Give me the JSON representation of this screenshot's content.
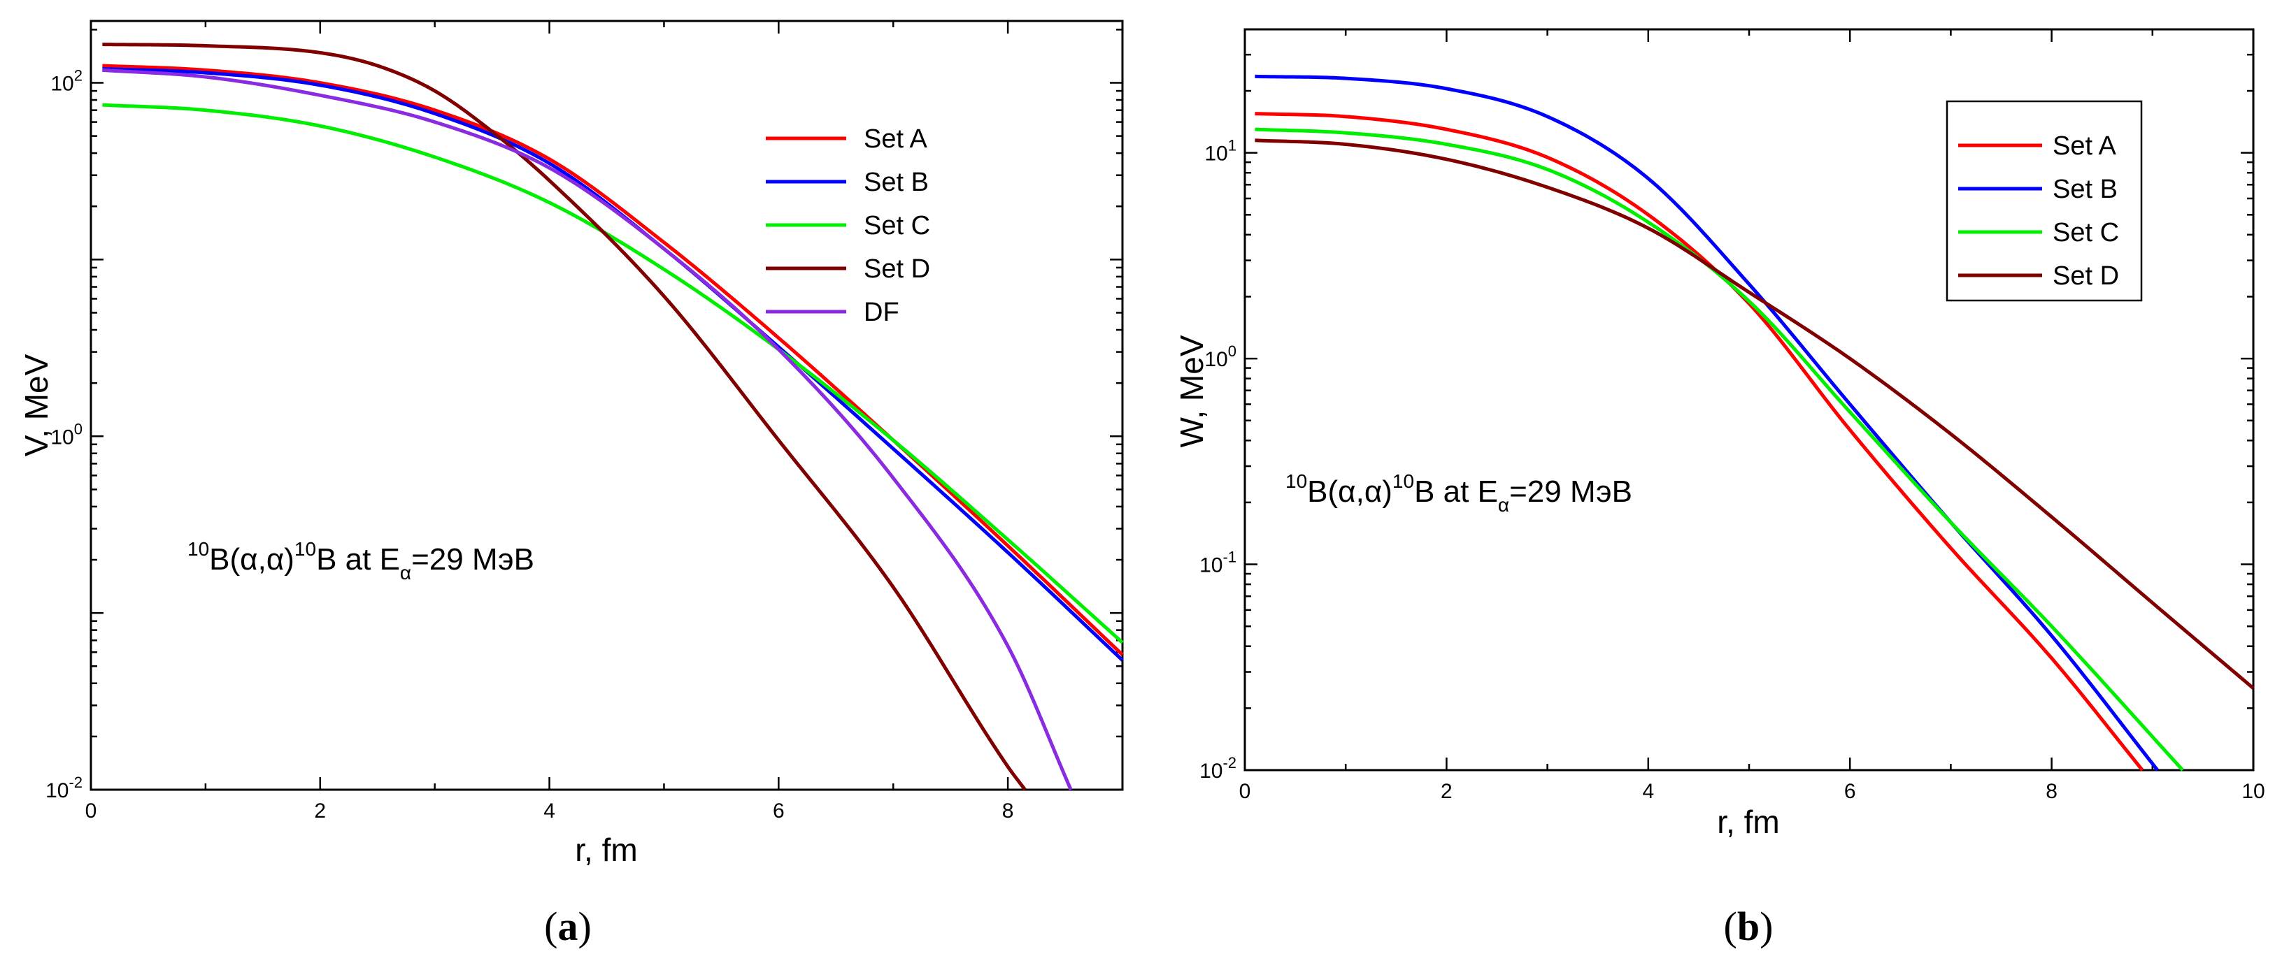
{
  "chart_data": [
    {
      "panel": "(a)",
      "caption_letter": "a",
      "type": "line",
      "yscale": "log",
      "xlabel": "r, fm",
      "ylabel": "V, MeV",
      "xlim": [
        0,
        9
      ],
      "ylim_log10": [
        -2,
        2.35
      ],
      "xticks": [
        0,
        2,
        4,
        6,
        8
      ],
      "xtick_labels": [
        "0",
        "2",
        "4",
        "6",
        "8"
      ],
      "yticks": [
        {
          "value": 0.01,
          "base": "10",
          "exp": "-2"
        },
        {
          "value": 1,
          "base": "10",
          "exp": "0"
        },
        {
          "value": 100,
          "base": "10",
          "exp": "2"
        }
      ],
      "legend_box": false,
      "annotation": {
        "pre_sup": "10",
        "a": "B(",
        "b": "α,α",
        "c": ")",
        "mid_sup": "10",
        "d": "B at E",
        "sub": "α",
        "e": "=29 МэВ"
      },
      "series": [
        {
          "name": "Set A",
          "color": "#ff0000",
          "x": [
            0.1,
            1,
            2,
            3,
            4,
            5,
            6,
            7,
            8,
            9
          ],
          "y": [
            125,
            118,
            100,
            70,
            37,
            12.5,
            3.6,
            0.95,
            0.24,
            0.058
          ]
        },
        {
          "name": "Set B",
          "color": "#0000ff",
          "x": [
            0.1,
            1,
            2,
            3,
            4,
            5,
            6,
            7,
            8,
            9
          ],
          "y": [
            120,
            114,
            97,
            67,
            35,
            11.5,
            3.2,
            0.85,
            0.22,
            0.054
          ]
        },
        {
          "name": "Set C",
          "color": "#00ee00",
          "x": [
            0.1,
            1,
            2,
            3,
            4,
            5,
            6,
            7,
            8,
            9
          ],
          "y": [
            75,
            70,
            57,
            38,
            21,
            8.8,
            3.1,
            0.95,
            0.26,
            0.068
          ]
        },
        {
          "name": "Set D",
          "color": "#800000",
          "x": [
            0.1,
            1,
            2,
            2.5,
            3,
            3.5,
            4,
            5,
            6,
            7,
            8,
            8.15
          ],
          "y": [
            165,
            162,
            148,
            125,
            90,
            53,
            28,
            6.2,
            0.95,
            0.14,
            0.0135,
            0.01
          ]
        },
        {
          "name": "DF",
          "color": "#8a2be2",
          "x": [
            0.1,
            1,
            2,
            3,
            4,
            5,
            6,
            7,
            8,
            8.55
          ],
          "y": [
            118,
            108,
            85,
            60,
            33,
            11.5,
            3.1,
            0.58,
            0.065,
            0.01
          ]
        }
      ]
    },
    {
      "panel": "(b)",
      "caption_letter": "b",
      "type": "line",
      "yscale": "log",
      "xlabel": "r, fm",
      "ylabel": "W, MeV",
      "xlim": [
        0,
        10
      ],
      "ylim_log10": [
        -2,
        1.6
      ],
      "xticks": [
        0,
        2,
        4,
        6,
        8,
        10
      ],
      "xtick_labels": [
        "0",
        "2",
        "4",
        "6",
        "8",
        "10"
      ],
      "yticks": [
        {
          "value": 0.01,
          "base": "10",
          "exp": "-2"
        },
        {
          "value": 0.1,
          "base": "10",
          "exp": "-1"
        },
        {
          "value": 1,
          "base": "10",
          "exp": "0"
        },
        {
          "value": 10,
          "base": "10",
          "exp": "1"
        }
      ],
      "legend_box": true,
      "annotation": {
        "pre_sup": "10",
        "a": "B(",
        "b": "α,α",
        "c": ")",
        "mid_sup": "10",
        "d": "B at E",
        "sub": "α",
        "e": "=29 МэВ"
      },
      "series": [
        {
          "name": "Set A",
          "color": "#ff0000",
          "x": [
            0.1,
            1,
            2,
            3,
            4,
            5,
            6,
            7,
            8,
            8.9
          ],
          "y": [
            15.5,
            15,
            13,
            9.5,
            5,
            1.85,
            0.45,
            0.12,
            0.035,
            0.01
          ]
        },
        {
          "name": "Set B",
          "color": "#0000ff",
          "x": [
            0.1,
            1,
            2,
            3,
            4,
            5,
            6,
            7,
            8,
            9.05
          ],
          "y": [
            23.5,
            23,
            20.5,
            15,
            7.5,
            2.3,
            0.6,
            0.16,
            0.045,
            0.01
          ]
        },
        {
          "name": "Set C",
          "color": "#00ee00",
          "x": [
            0.1,
            1,
            2,
            3,
            4,
            5,
            6,
            7,
            8,
            9.3
          ],
          "y": [
            13,
            12.5,
            11,
            8.3,
            4.6,
            1.9,
            0.55,
            0.16,
            0.05,
            0.01
          ]
        },
        {
          "name": "Set D",
          "color": "#800000",
          "x": [
            0.1,
            1,
            2,
            3,
            4,
            5,
            6,
            7,
            8,
            9,
            10
          ],
          "y": [
            11.5,
            11,
            9.3,
            6.8,
            4.3,
            2.1,
            1.0,
            0.43,
            0.17,
            0.065,
            0.025
          ]
        }
      ]
    }
  ]
}
